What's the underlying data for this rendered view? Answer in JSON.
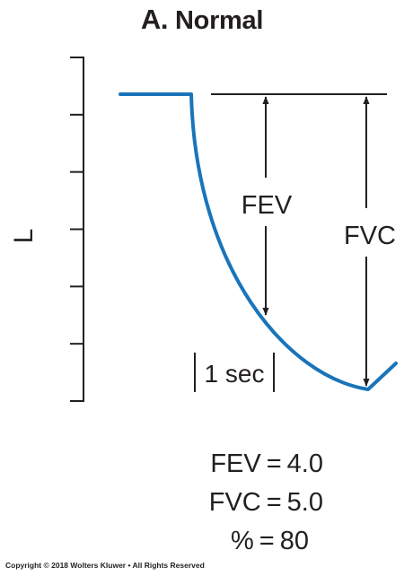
{
  "title": {
    "letter": "A.",
    "text": "Normal"
  },
  "diagram": {
    "y_axis_label": "L",
    "y_axis_tick_count": 7,
    "fev_label": "FEV",
    "fvc_label": "FVC",
    "time_marker_label": "1 sec",
    "curve_color": "#1a74b9",
    "line_color": "#231f20"
  },
  "results": [
    {
      "name": "FEV",
      "value": "4.0"
    },
    {
      "name": "FVC",
      "value": "5.0"
    },
    {
      "name": "%",
      "value": "80"
    }
  ],
  "copyright": "Copyright © 2018 Wolters Kluwer • All Rights Reserved"
}
